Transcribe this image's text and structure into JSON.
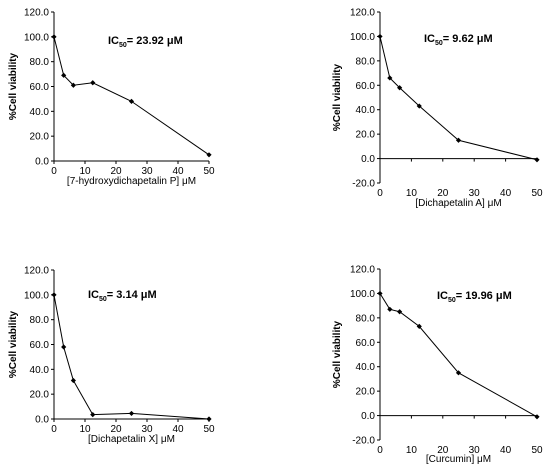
{
  "chart_data": [
    {
      "type": "line",
      "xlabel": "[7-hydroxydichapetalin P] μM",
      "ylabel": "%Cell viability",
      "annotation": {
        "prefix": "IC",
        "sub": "50",
        "text": "= 23.92 μM"
      },
      "xlim": [
        0,
        50
      ],
      "ylim": [
        0,
        120
      ],
      "x_ticks": [
        "0",
        "10",
        "20",
        "30",
        "40",
        "50"
      ],
      "y_ticks": [
        "0.0",
        "20.0",
        "40.0",
        "60.0",
        "80.0",
        "100.0",
        "120.0"
      ],
      "x": [
        0,
        3.125,
        6.25,
        12.5,
        25,
        50
      ],
      "values": [
        100,
        69,
        61,
        63,
        48,
        5
      ]
    },
    {
      "type": "line",
      "xlabel": "[Dichapetalin A] μM",
      "ylabel": "%Cell viability",
      "annotation": {
        "prefix": "IC",
        "sub": "50",
        "text": "= 9.62 μM"
      },
      "xlim": [
        0,
        50
      ],
      "ylim": [
        -20,
        120
      ],
      "x_ticks": [
        "0",
        "10",
        "20",
        "30",
        "40",
        "50"
      ],
      "y_ticks": [
        "-20.0",
        "0.0",
        "20.0",
        "40.0",
        "60.0",
        "80.0",
        "100.0",
        "120.0"
      ],
      "x": [
        0,
        3.125,
        6.25,
        12.5,
        25,
        50
      ],
      "values": [
        100,
        66,
        58,
        43,
        15,
        -1
      ]
    },
    {
      "type": "line",
      "xlabel": "[Dichapetalin X] μM",
      "ylabel": "%Cell viability",
      "annotation": {
        "prefix": "IC",
        "sub": "50",
        "text": "= 3.14 μM"
      },
      "xlim": [
        0,
        50
      ],
      "ylim": [
        0,
        120
      ],
      "x_ticks": [
        "0",
        "10",
        "20",
        "30",
        "40",
        "50"
      ],
      "y_ticks": [
        "0.0",
        "20.0",
        "40.0",
        "60.0",
        "80.0",
        "100.0",
        "120.0"
      ],
      "x": [
        0,
        3.125,
        6.25,
        12.5,
        25,
        50
      ],
      "values": [
        100,
        58,
        31,
        3.5,
        4.5,
        0
      ]
    },
    {
      "type": "line",
      "xlabel": "[Curcumin] μM",
      "ylabel": "%Cell viability",
      "annotation": {
        "prefix": "IC",
        "sub": "50",
        "text": "= 19.96 μM"
      },
      "xlim": [
        0,
        50
      ],
      "ylim": [
        -20,
        120
      ],
      "x_ticks": [
        "0",
        "10",
        "20",
        "30",
        "40",
        "50"
      ],
      "y_ticks": [
        "-20.0",
        "0.0",
        "20.0",
        "40.0",
        "60.0",
        "80.0",
        "100.0",
        "120.0"
      ],
      "x": [
        0,
        3.125,
        6.25,
        12.5,
        25,
        50
      ],
      "values": [
        100,
        87,
        85,
        73,
        35,
        -1
      ]
    }
  ]
}
